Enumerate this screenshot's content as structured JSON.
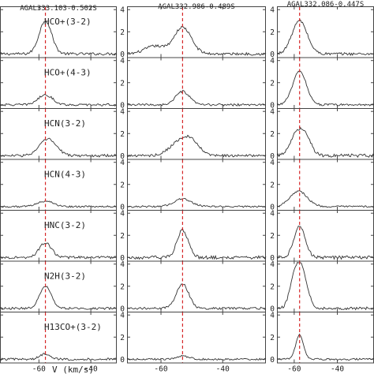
{
  "chart_data": {
    "type": "line",
    "title": "",
    "xlabel": "V (km/s)",
    "ylabel": "",
    "grid": false,
    "columns": [
      {
        "title": "AGAL333.103-0.502S",
        "vlsr": -57.5,
        "xticks": [
          -60,
          -40
        ],
        "xlim": [
          -75,
          -30
        ],
        "show_yticks": false
      },
      {
        "title": "AGAL332.986-0.489S",
        "vlsr": -53.0,
        "xticks": [
          -60,
          -40
        ],
        "xlim": [
          -71,
          -26
        ],
        "show_yticks": true
      },
      {
        "title": "AGAL332.086-0.447S",
        "vlsr": -57.5,
        "xticks": [
          -60,
          -40
        ],
        "xlim": [
          -68,
          -23
        ],
        "show_yticks": true
      }
    ],
    "rows": [
      {
        "label": "HCO+(3-2)"
      },
      {
        "label": "HCO+(4-3)"
      },
      {
        "label": "HCN(3-2)"
      },
      {
        "label": "HCN(4-3)"
      },
      {
        "label": "HNC(3-2)"
      },
      {
        "label": "N2H(3-2)"
      },
      {
        "label": "H13CO+(3-2)"
      }
    ],
    "ylim": [
      -0.3,
      4.3
    ],
    "yticks": [
      0,
      2,
      4
    ],
    "reference_line_color": "#d62728",
    "spectrum_color": "#333333",
    "panels": [
      [
        {
          "components": [
            {
              "amp": 3.0,
              "center": -57.5,
              "width": 2.4
            }
          ],
          "noise": 0.12
        },
        {
          "components": [
            {
              "amp": 0.9,
              "center": -57.5,
              "width": 2.8
            }
          ],
          "noise": 0.1
        },
        {
          "components": [
            {
              "amp": 1.5,
              "center": -56.5,
              "width": 3.2
            }
          ],
          "noise": 0.12
        },
        {
          "components": [
            {
              "amp": 0.5,
              "center": -57.5,
              "width": 3.0
            }
          ],
          "noise": 0.08
        },
        {
          "components": [
            {
              "amp": 1.3,
              "center": -57.5,
              "width": 2.4
            }
          ],
          "noise": 0.12
        },
        {
          "components": [
            {
              "amp": 2.0,
              "center": -57.5,
              "width": 2.2
            }
          ],
          "noise": 0.1
        },
        {
          "components": [
            {
              "amp": 0.5,
              "center": -57.5,
              "width": 2.0
            }
          ],
          "noise": 0.1
        }
      ],
      [
        {
          "components": [
            {
              "amp": 2.4,
              "center": -53.0,
              "width": 2.8
            },
            {
              "amp": 0.7,
              "center": -62.0,
              "width": 3.2
            }
          ],
          "noise": 0.12
        },
        {
          "components": [
            {
              "amp": 1.2,
              "center": -53.0,
              "width": 2.2
            }
          ],
          "noise": 0.1
        },
        {
          "components": [
            {
              "amp": 1.2,
              "center": -54.0,
              "width": 3.2
            },
            {
              "amp": 1.0,
              "center": -50.0,
              "width": 2.6
            }
          ],
          "noise": 0.12
        },
        {
          "components": [
            {
              "amp": 0.7,
              "center": -53.0,
              "width": 2.8
            }
          ],
          "noise": 0.08
        },
        {
          "components": [
            {
              "amp": 2.5,
              "center": -53.0,
              "width": 1.8
            }
          ],
          "noise": 0.15
        },
        {
          "components": [
            {
              "amp": 2.2,
              "center": -53.0,
              "width": 2.0
            }
          ],
          "noise": 0.1
        },
        {
          "components": [
            {
              "amp": 0.3,
              "center": -53.0,
              "width": 2.0
            }
          ],
          "noise": 0.08
        }
      ],
      [
        {
          "components": [
            {
              "amp": 3.0,
              "center": -57.5,
              "width": 3.5
            }
          ],
          "noise": 0.12
        },
        {
          "components": [
            {
              "amp": 3.0,
              "center": -57.5,
              "width": 3.2
            }
          ],
          "noise": 0.1
        },
        {
          "components": [
            {
              "amp": 1.6,
              "center": -59.5,
              "width": 2.8
            },
            {
              "amp": 1.8,
              "center": -55.0,
              "width": 2.8
            }
          ],
          "noise": 0.15
        },
        {
          "components": [
            {
              "amp": 1.4,
              "center": -58.0,
              "width": 4.0
            }
          ],
          "noise": 0.08
        },
        {
          "components": [
            {
              "amp": 2.8,
              "center": -57.5,
              "width": 2.6
            }
          ],
          "noise": 0.15
        },
        {
          "components": [
            {
              "amp": 3.8,
              "center": -57.0,
              "width": 2.8
            },
            {
              "amp": 1.4,
              "center": -60.5,
              "width": 2.0
            }
          ],
          "noise": 0.12
        },
        {
          "components": [
            {
              "amp": 2.2,
              "center": -57.5,
              "width": 1.8
            }
          ],
          "noise": 0.08
        }
      ]
    ]
  }
}
